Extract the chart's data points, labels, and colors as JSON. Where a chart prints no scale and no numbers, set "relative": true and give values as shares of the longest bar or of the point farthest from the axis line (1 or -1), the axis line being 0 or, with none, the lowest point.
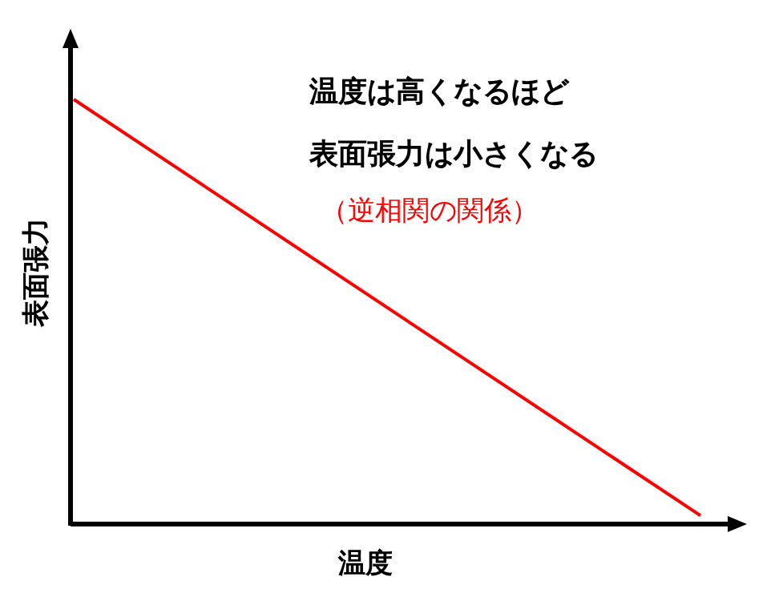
{
  "chart_data": {
    "type": "line",
    "relative": true,
    "xlabel": "温度",
    "ylabel": "表面張力",
    "categories": [
      null,
      null
    ],
    "series": [
      {
        "color": "#ff0000",
        "values": [
          1,
          0.02
        ]
      }
    ],
    "annotations": [
      "温度は高くなるほど",
      "表面張力は小さくなる",
      "（逆相関の関係）"
    ]
  }
}
